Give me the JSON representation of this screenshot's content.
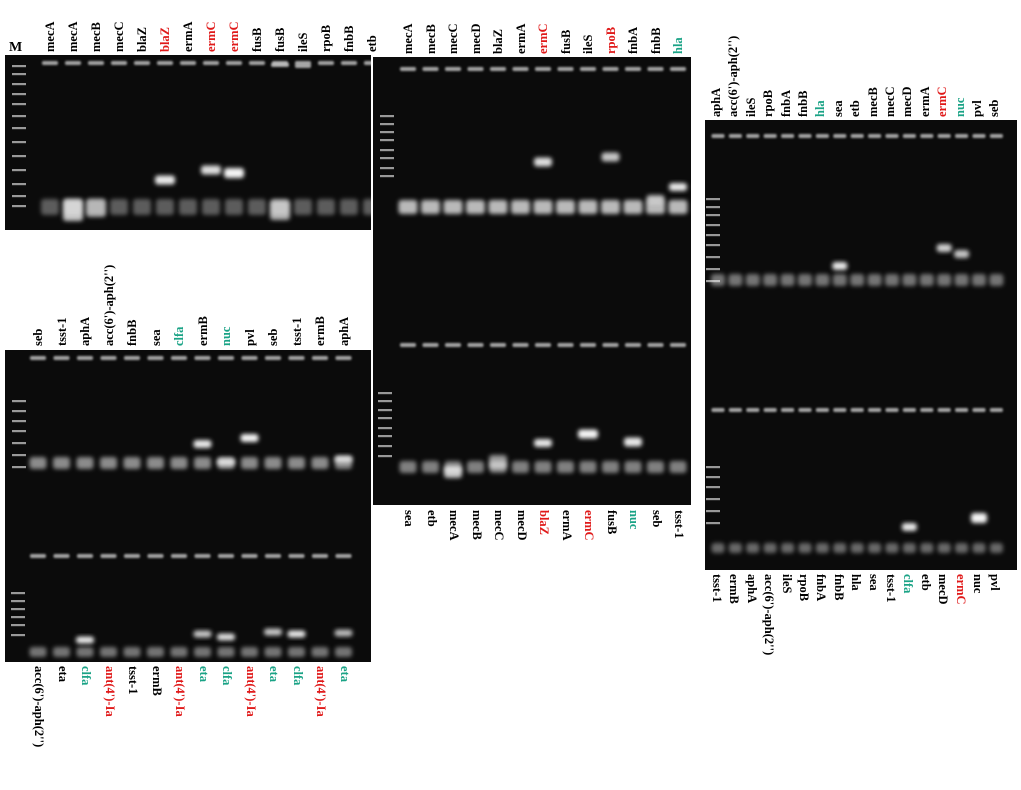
{
  "marker_label": "M",
  "colors": {
    "black": "#000000",
    "red": "#e01a1a",
    "green": "#1aa386",
    "gel": "#0b0b0b",
    "band": "#f2f2f2"
  },
  "gel_a": {
    "top_labels": [
      {
        "text": "mecA",
        "c": "k"
      },
      {
        "text": "mecA",
        "c": "k"
      },
      {
        "text": "mecB",
        "c": "k"
      },
      {
        "text": "mecC",
        "c": "k"
      },
      {
        "text": "blaZ",
        "c": "k"
      },
      {
        "text": "blaZ",
        "c": "r"
      },
      {
        "text": "ermA",
        "c": "k"
      },
      {
        "text": "ermC",
        "c": "r"
      },
      {
        "text": "ermC",
        "c": "r"
      },
      {
        "text": "fusB",
        "c": "k"
      },
      {
        "text": "fusB",
        "c": "k"
      },
      {
        "text": "ileS",
        "c": "k"
      },
      {
        "text": "rpoB",
        "c": "k"
      },
      {
        "text": "fnbB",
        "c": "k"
      },
      {
        "text": "etb",
        "c": "k"
      }
    ]
  },
  "gel_b": {
    "top_labels": [
      {
        "text": "mecA",
        "c": "k"
      },
      {
        "text": "mecB",
        "c": "k"
      },
      {
        "text": "mecC",
        "c": "k"
      },
      {
        "text": "mecD",
        "c": "k"
      },
      {
        "text": "blaZ",
        "c": "k"
      },
      {
        "text": "ermA",
        "c": "k"
      },
      {
        "text": "ermC",
        "c": "r"
      },
      {
        "text": "fusB",
        "c": "k"
      },
      {
        "text": "ileS",
        "c": "k"
      },
      {
        "text": "rpoB",
        "c": "r"
      },
      {
        "text": "fnbA",
        "c": "k"
      },
      {
        "text": "fnbB",
        "c": "k"
      },
      {
        "text": "hla",
        "c": "g"
      }
    ],
    "bottom_labels": [
      {
        "text": "sea",
        "c": "k"
      },
      {
        "text": "etb",
        "c": "k"
      },
      {
        "text": "mecA",
        "c": "k"
      },
      {
        "text": "mecB",
        "c": "k"
      },
      {
        "text": "mecC",
        "c": "k"
      },
      {
        "text": "mecD",
        "c": "k"
      },
      {
        "text": "blaZ",
        "c": "r"
      },
      {
        "text": "ermA",
        "c": "k"
      },
      {
        "text": "ermC",
        "c": "r"
      },
      {
        "text": "fusB",
        "c": "k"
      },
      {
        "text": "nuc",
        "c": "g"
      },
      {
        "text": "seb",
        "c": "k"
      },
      {
        "text": "tsst-1",
        "c": "k"
      }
    ]
  },
  "gel_c": {
    "top_labels": [
      {
        "text": "seb",
        "c": "k"
      },
      {
        "text": "tsst-1",
        "c": "k"
      },
      {
        "text": "aphA",
        "c": "k"
      },
      {
        "text": "acc(6')-aph(2'')",
        "c": "k"
      },
      {
        "text": "fnbB",
        "c": "k"
      },
      {
        "text": "sea",
        "c": "k"
      },
      {
        "text": "clfa",
        "c": "g"
      },
      {
        "text": "ermB",
        "c": "k"
      },
      {
        "text": "nuc",
        "c": "g"
      },
      {
        "text": "pvl",
        "c": "k"
      },
      {
        "text": "seb",
        "c": "k"
      },
      {
        "text": "tsst-1",
        "c": "k"
      },
      {
        "text": "ermB",
        "c": "k"
      },
      {
        "text": "aphA",
        "c": "k"
      }
    ],
    "bottom_labels": [
      {
        "text": "acc(6')-aph(2'')",
        "c": "k"
      },
      {
        "text": "eta",
        "c": "k"
      },
      {
        "text": "clfa",
        "c": "g"
      },
      {
        "text": "ant(4')-Ia",
        "c": "r"
      },
      {
        "text": "tsst-1",
        "c": "k"
      },
      {
        "text": "ermB",
        "c": "k"
      },
      {
        "text": "ant(4')-Ia",
        "c": "r"
      },
      {
        "text": "eta",
        "c": "g"
      },
      {
        "text": "clfa",
        "c": "g"
      },
      {
        "text": "ant(4')-Ia",
        "c": "r"
      },
      {
        "text": "eta",
        "c": "g"
      },
      {
        "text": "clfa",
        "c": "g"
      },
      {
        "text": "ant(4')-Ia",
        "c": "r"
      },
      {
        "text": "eta",
        "c": "g"
      }
    ]
  },
  "gel_d": {
    "top_labels": [
      {
        "text": "aphA",
        "c": "k"
      },
      {
        "text": "acc(6')-aph(2'')",
        "c": "k"
      },
      {
        "text": "ileS",
        "c": "k"
      },
      {
        "text": "rpoB",
        "c": "k"
      },
      {
        "text": "fnbA",
        "c": "k"
      },
      {
        "text": "fnbB",
        "c": "k"
      },
      {
        "text": "hla",
        "c": "g"
      },
      {
        "text": "sea",
        "c": "k"
      },
      {
        "text": "etb",
        "c": "k"
      },
      {
        "text": "mecB",
        "c": "k"
      },
      {
        "text": "mecC",
        "c": "k"
      },
      {
        "text": "mecD",
        "c": "k"
      },
      {
        "text": "ermA",
        "c": "k"
      },
      {
        "text": "ermC",
        "c": "r"
      },
      {
        "text": "nuc",
        "c": "g"
      },
      {
        "text": "pvl",
        "c": "k"
      },
      {
        "text": "seb",
        "c": "k"
      }
    ],
    "bottom_labels": [
      {
        "text": "tsst-1",
        "c": "k"
      },
      {
        "text": "ermB",
        "c": "k"
      },
      {
        "text": "aphA",
        "c": "k"
      },
      {
        "text": "acc(6')-aph(2'')",
        "c": "k"
      },
      {
        "text": "ileS",
        "c": "k"
      },
      {
        "text": "rpoB",
        "c": "k"
      },
      {
        "text": "fnbA",
        "c": "k"
      },
      {
        "text": "fnbB",
        "c": "k"
      },
      {
        "text": "hla",
        "c": "k"
      },
      {
        "text": "sea",
        "c": "k"
      },
      {
        "text": "tsst-1",
        "c": "k"
      },
      {
        "text": "clfa",
        "c": "g"
      },
      {
        "text": "etb",
        "c": "k"
      },
      {
        "text": "mecD",
        "c": "k"
      },
      {
        "text": "ermC",
        "c": "r"
      },
      {
        "text": "nuc",
        "c": "k"
      },
      {
        "text": "pvl",
        "c": "k"
      }
    ]
  }
}
